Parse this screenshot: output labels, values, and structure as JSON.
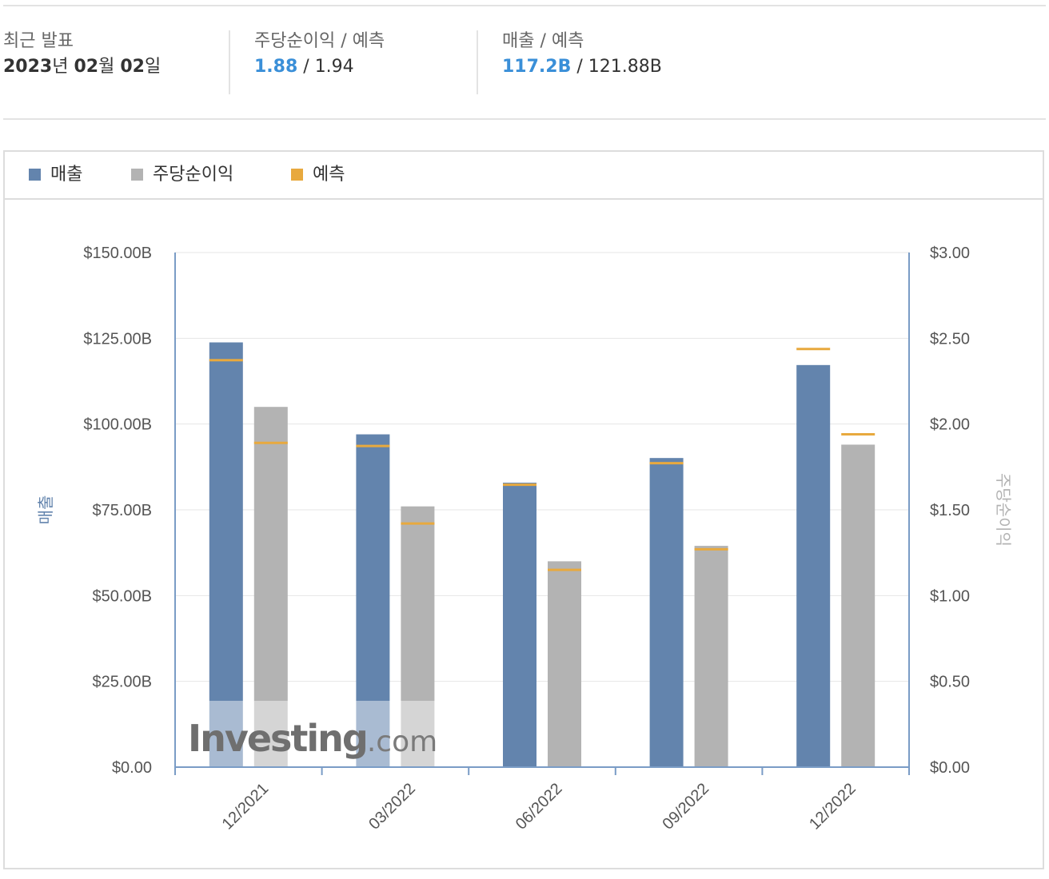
{
  "summary": {
    "latest": {
      "label": "최근 발표",
      "value_year": "2023",
      "value_year_unit": "년 ",
      "value_month": "02",
      "value_month_unit": "월 ",
      "value_day": "02",
      "value_day_unit": "일"
    },
    "eps": {
      "label": "주당순이익 / 예측",
      "actual": "1.88",
      "separator": " / ",
      "forecast": "1.94"
    },
    "revenue": {
      "label": "매출 / 예측",
      "actual": "117.2B",
      "separator": " / ",
      "forecast": "121.88B"
    }
  },
  "colors": {
    "revenue": "#6384ad",
    "eps": "#b3b3b3",
    "forecast": "#e8a93e",
    "highlight": "#3a8fd8",
    "axis": "#7a9cc6"
  },
  "legend": [
    {
      "label": "매출",
      "color": "#6384ad"
    },
    {
      "label": "주당순이익",
      "color": "#b3b3b3"
    },
    {
      "label": "예측",
      "color": "#e8a93e"
    }
  ],
  "watermark": {
    "brand": "Investing",
    "suffix": ".com"
  },
  "chart_data": {
    "type": "bar",
    "categories": [
      "12/2021",
      "03/2022",
      "06/2022",
      "09/2022",
      "12/2022"
    ],
    "y_left": {
      "label": "매출",
      "range": [
        0,
        150
      ],
      "ticks": [
        0,
        25,
        50,
        75,
        100,
        125,
        150
      ],
      "tick_labels": [
        "$0.00",
        "$25.00B",
        "$50.00B",
        "$75.00B",
        "$100.00B",
        "$125.00B",
        "$150.00B"
      ]
    },
    "y_right": {
      "label": "주당순이익",
      "range": [
        0,
        3
      ],
      "ticks": [
        0,
        0.5,
        1,
        1.5,
        2,
        2.5,
        3
      ],
      "tick_labels": [
        "$0.00",
        "$0.50",
        "$1.00",
        "$1.50",
        "$2.00",
        "$2.50",
        "$3.00"
      ]
    },
    "series": [
      {
        "name": "매출",
        "axis": "left",
        "values": [
          123.8,
          97.0,
          82.9,
          90.1,
          117.2
        ],
        "forecast": [
          118.6,
          93.6,
          82.3,
          88.6,
          121.88
        ]
      },
      {
        "name": "주당순이익",
        "axis": "right",
        "values": [
          2.1,
          1.52,
          1.2,
          1.29,
          1.88
        ],
        "forecast": [
          1.89,
          1.42,
          1.15,
          1.27,
          1.94
        ]
      }
    ],
    "grid": true,
    "legend_position": "top-left"
  }
}
